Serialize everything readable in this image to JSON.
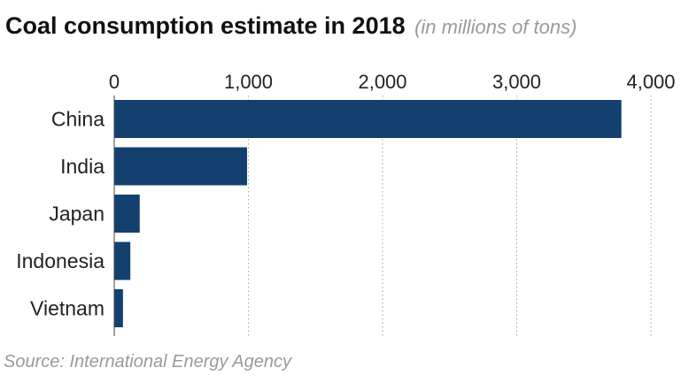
{
  "chart_data": {
    "type": "bar",
    "orientation": "horizontal",
    "title": "Coal consumption estimate in 2018",
    "subtitle": "(in millions of tons)",
    "categories": [
      "China",
      "India",
      "Japan",
      "Indonesia",
      "Vietnam"
    ],
    "values": [
      3780,
      990,
      190,
      120,
      65
    ],
    "xlim": [
      0,
      4000
    ],
    "x_ticks": [
      0,
      1000,
      2000,
      3000,
      4000
    ],
    "x_tick_labels": [
      "0",
      "1,000",
      "2,000",
      "3,000",
      "4,000"
    ],
    "axis_position": "top",
    "grid": "vertical dotted",
    "bar_color": "#13406f",
    "source": "Source: International Energy Agency"
  }
}
